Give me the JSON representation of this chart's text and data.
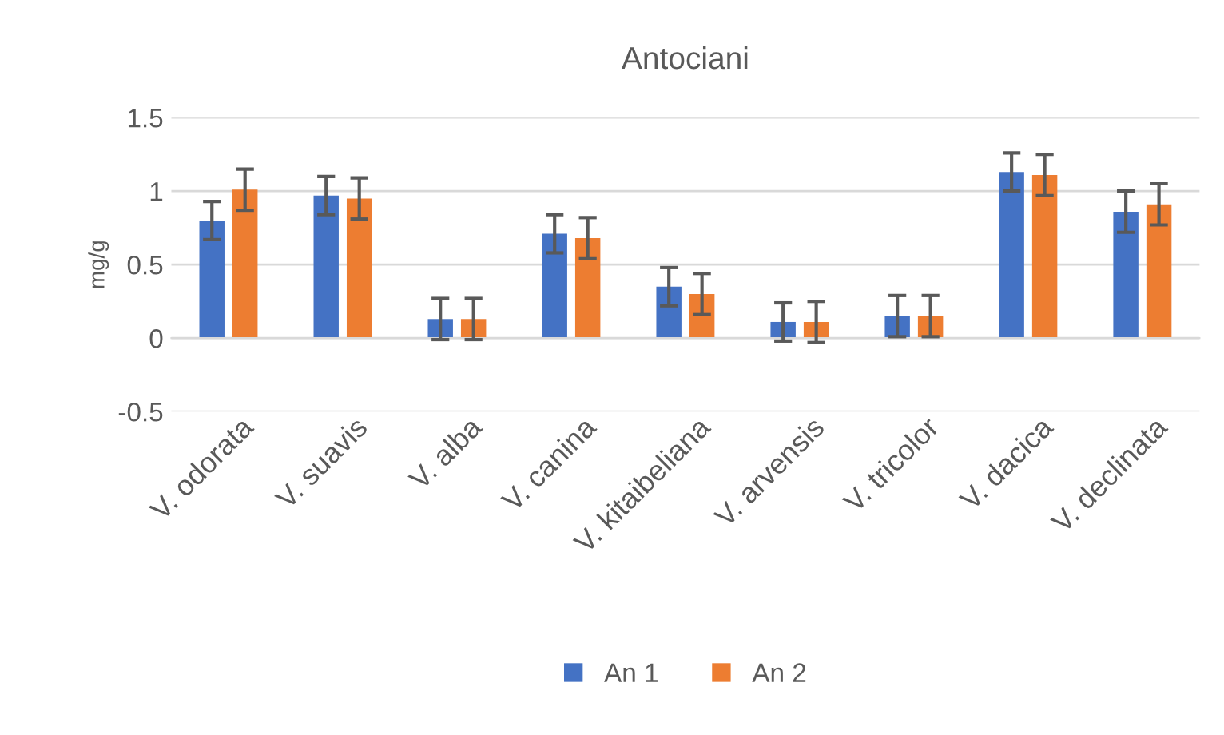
{
  "chart_data": {
    "type": "bar",
    "title": "Antociani",
    "ylabel": "mg/g",
    "categories": [
      "V. odorata",
      "V. suavis",
      "V. alba",
      "V. canina",
      "V. kitaibeliana",
      "V. arvensis",
      "V. tricolor",
      "V. dacica",
      "V. declinata"
    ],
    "series": [
      {
        "name": "An 1",
        "color": "#4472c4",
        "values": [
          0.8,
          0.97,
          0.13,
          0.71,
          0.35,
          0.11,
          0.15,
          1.13,
          0.86
        ],
        "errors": [
          0.13,
          0.13,
          0.14,
          0.13,
          0.13,
          0.13,
          0.14,
          0.13,
          0.14
        ]
      },
      {
        "name": "An 2",
        "color": "#ed7d31",
        "values": [
          1.01,
          0.95,
          0.13,
          0.68,
          0.3,
          0.11,
          0.15,
          1.11,
          0.91
        ],
        "errors": [
          0.14,
          0.14,
          0.14,
          0.14,
          0.14,
          0.14,
          0.14,
          0.14,
          0.14
        ]
      }
    ],
    "ylim": [
      -0.5,
      1.5
    ],
    "yticks": [
      -0.5,
      0,
      0.5,
      1,
      1.5
    ],
    "grid": "y",
    "legend": "bottom"
  }
}
